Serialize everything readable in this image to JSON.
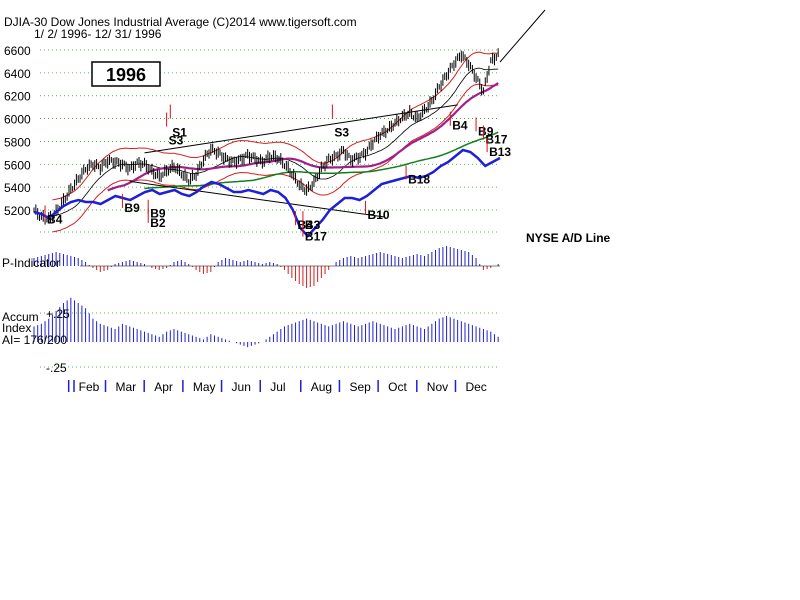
{
  "header": {
    "title": "DJIA-30  Dow Jones Industrial Average   (C)2014 www.tigersoft.com",
    "date_range": "1/ 2/ 1996- 12/ 31/ 1996",
    "year_box": "1996"
  },
  "labels": {
    "adline": "NYSE A/D Line",
    "p_indicator": "P-Indicator",
    "accum_line1": "Accum",
    "accum_line2": "Index",
    "accum_line3": "AI= 176/200",
    "accum_top": "+.25",
    "accum_bottom": "-.25"
  },
  "colors": {
    "price_bars": "#000000",
    "adline": "#1f1fd6",
    "positive_histogram": "#1f1fd6",
    "negative_histogram": "#d41f1f",
    "signal_arrow": "#e01010",
    "ma_21": "#d41f1f",
    "ma_50": "#a0208a",
    "ma_200": "#12801a",
    "gridline": "#2a9a2a"
  },
  "chart_data": {
    "type": "line",
    "title": "DJIA-30  Dow Jones Industrial Average",
    "ylim": [
      5000,
      6750
    ],
    "yticks": [
      5200,
      5400,
      5600,
      5800,
      6000,
      6200,
      6400,
      6600
    ],
    "months": [
      "Feb",
      "Mar",
      "Apr",
      "May",
      "Jun",
      "Jul",
      "Aug",
      "Sep",
      "Oct",
      "Nov",
      "Dec"
    ],
    "grid": true,
    "series": [
      {
        "name": "DJIA",
        "kind": "price",
        "x": [
          0,
          4,
          8,
          12,
          16,
          20,
          24,
          28,
          32,
          36,
          40,
          44,
          48,
          52,
          56,
          60,
          64,
          68,
          72,
          76,
          80,
          84,
          88,
          92,
          96,
          100,
          104,
          108,
          112,
          116,
          120,
          124,
          128,
          132,
          136,
          140,
          144,
          148,
          152,
          156,
          160,
          164,
          168,
          172,
          176,
          180,
          184,
          188,
          192,
          196,
          200,
          204,
          208,
          212,
          216,
          220,
          224,
          228,
          232,
          236,
          240,
          244,
          248,
          252
        ],
        "values": [
          5200,
          5140,
          5120,
          5180,
          5280,
          5380,
          5470,
          5560,
          5600,
          5570,
          5630,
          5620,
          5600,
          5560,
          5610,
          5600,
          5540,
          5490,
          5540,
          5580,
          5520,
          5460,
          5510,
          5640,
          5730,
          5700,
          5650,
          5620,
          5640,
          5680,
          5650,
          5620,
          5670,
          5660,
          5600,
          5520,
          5420,
          5370,
          5440,
          5560,
          5640,
          5670,
          5720,
          5640,
          5660,
          5700,
          5790,
          5860,
          5900,
          5960,
          6010,
          6050,
          6000,
          6070,
          6150,
          6280,
          6380,
          6480,
          6560,
          6480,
          6360,
          6240,
          6500,
          6560
        ]
      },
      {
        "name": "NYSE A/D Line",
        "kind": "adline",
        "values": [
          46,
          44,
          40,
          46,
          52,
          56,
          58,
          56,
          56,
          54,
          58,
          62,
          60,
          58,
          62,
          66,
          68,
          64,
          66,
          68,
          64,
          62,
          66,
          72,
          76,
          74,
          70,
          66,
          66,
          68,
          66,
          64,
          68,
          66,
          60,
          48,
          30,
          22,
          30,
          38,
          48,
          54,
          60,
          60,
          58,
          62,
          68,
          74,
          76,
          78,
          80,
          82,
          80,
          82,
          86,
          92,
          96,
          102,
          108,
          106,
          100,
          92,
          96,
          100
        ]
      },
      {
        "name": "P-Indicator",
        "kind": "histogram",
        "values": [
          8,
          10,
          12,
          14,
          12,
          10,
          8,
          4,
          -2,
          -6,
          -4,
          2,
          4,
          6,
          4,
          2,
          -2,
          -4,
          -2,
          4,
          6,
          2,
          -4,
          -8,
          -6,
          4,
          8,
          6,
          4,
          6,
          4,
          2,
          4,
          2,
          -4,
          -12,
          -18,
          -22,
          -20,
          -12,
          -4,
          4,
          8,
          10,
          8,
          10,
          12,
          14,
          12,
          10,
          8,
          10,
          12,
          10,
          14,
          18,
          20,
          18,
          16,
          14,
          8,
          -4,
          -2,
          2
        ]
      },
      {
        "name": "Accum Index",
        "kind": "histogram",
        "values": [
          12,
          14,
          18,
          24,
          30,
          34,
          30,
          26,
          18,
          14,
          12,
          10,
          14,
          12,
          10,
          8,
          6,
          4,
          8,
          10,
          8,
          6,
          4,
          2,
          6,
          4,
          2,
          0,
          -2,
          -4,
          -2,
          0,
          4,
          8,
          12,
          14,
          16,
          18,
          16,
          14,
          12,
          14,
          16,
          14,
          12,
          14,
          16,
          14,
          12,
          10,
          12,
          14,
          12,
          10,
          14,
          18,
          20,
          18,
          16,
          14,
          12,
          10,
          8,
          4
        ]
      }
    ],
    "signals": [
      {
        "label": "B4",
        "x": 6,
        "value": 5240
      },
      {
        "label": "B9",
        "x": 48,
        "value": 5340
      },
      {
        "label": "B9",
        "x": 62,
        "value": 5290
      },
      {
        "label": "B2",
        "x": 62,
        "value": 5210
      },
      {
        "label": "S1",
        "x": 74,
        "value": 6000
      },
      {
        "label": "S3",
        "x": 72,
        "value": 5930
      },
      {
        "label": "B4",
        "x": 142,
        "value": 5190
      },
      {
        "label": "B3",
        "x": 146,
        "value": 5190
      },
      {
        "label": "B17",
        "x": 146,
        "value": 5090
      },
      {
        "label": "S3",
        "x": 162,
        "value": 6000
      },
      {
        "label": "B10",
        "x": 180,
        "value": 5280
      },
      {
        "label": "B18",
        "x": 202,
        "value": 5590
      },
      {
        "label": "B4",
        "x": 226,
        "value": 6060
      },
      {
        "label": "B9",
        "x": 240,
        "value": 6010
      },
      {
        "label": "B17",
        "x": 244,
        "value": 5940
      },
      {
        "label": "B13",
        "x": 246,
        "value": 5830
      }
    ]
  }
}
